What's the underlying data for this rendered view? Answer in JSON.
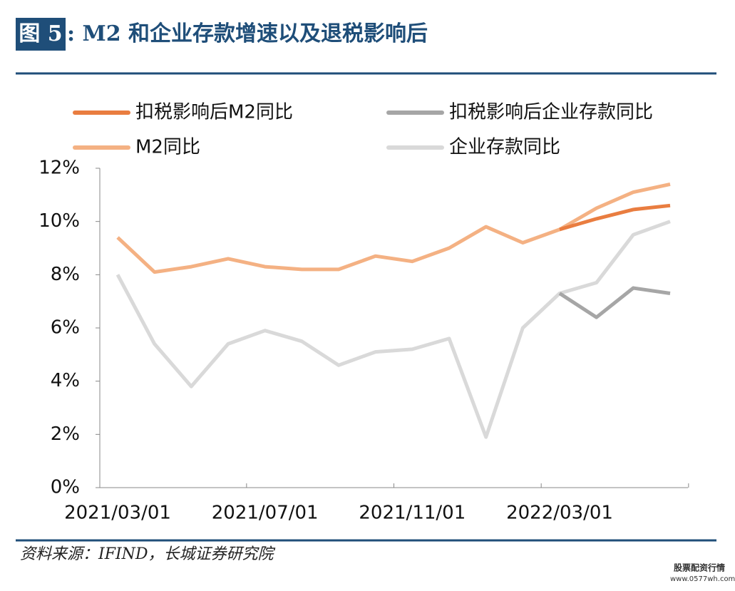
{
  "header": {
    "figure_label": "图 5",
    "title": ": M2 和企业存款增速以及退税影响后"
  },
  "chart_data": {
    "type": "line",
    "categories": [
      "2021/03/01",
      null,
      null,
      null,
      "2021/07/01",
      null,
      null,
      null,
      "2021/11/01",
      null,
      null,
      null,
      "2022/03/01",
      null,
      null,
      null
    ],
    "series": [
      {
        "name": "扣税影响后M2同比",
        "color": "#e97d40",
        "values": [
          null,
          null,
          null,
          null,
          null,
          null,
          null,
          null,
          null,
          null,
          null,
          null,
          9.7,
          10.1,
          10.45,
          10.6
        ]
      },
      {
        "name": "扣税影响后企业存款同比",
        "color": "#a6a6a6",
        "values": [
          null,
          null,
          null,
          null,
          null,
          null,
          null,
          null,
          null,
          null,
          null,
          null,
          7.3,
          6.4,
          7.5,
          7.3
        ]
      },
      {
        "name": "M2同比",
        "color": "#f4b183",
        "values": [
          9.4,
          8.1,
          8.3,
          8.6,
          8.3,
          8.2,
          8.2,
          8.7,
          8.5,
          9.0,
          9.8,
          9.2,
          9.7,
          10.5,
          11.1,
          11.4
        ]
      },
      {
        "name": "企业存款同比",
        "color": "#d9d9d9",
        "values": [
          8.0,
          5.4,
          3.8,
          5.4,
          5.9,
          5.5,
          4.6,
          5.1,
          5.2,
          5.6,
          1.9,
          6.0,
          7.3,
          7.7,
          9.5,
          10.0
        ]
      }
    ],
    "ylim": [
      0,
      12
    ],
    "yticks": [
      {
        "value": 0,
        "label": "0%"
      },
      {
        "value": 2,
        "label": "2%"
      },
      {
        "value": 4,
        "label": "4%"
      },
      {
        "value": 6,
        "label": "6%"
      },
      {
        "value": 8,
        "label": "8%"
      },
      {
        "value": 10,
        "label": "10%"
      },
      {
        "value": 12,
        "label": "12%"
      }
    ]
  },
  "source": "资料来源：IFIND，长城证券研究院",
  "watermark": {
    "name": "股票配资行情",
    "url": "www.0577wh.com"
  }
}
